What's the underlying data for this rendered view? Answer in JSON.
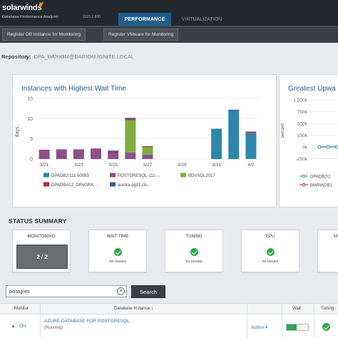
{
  "app": {
    "logo_text": "solarwinds",
    "product": "Database Performance Analyzer",
    "version": "2020.2.800",
    "tabs": [
      "PERFORMANCE",
      "VIRTUALIZATION"
    ]
  },
  "subnav": {
    "buttons": [
      "Register DB Instance for Monitoring",
      "Register VMware for Monitoring"
    ]
  },
  "repository": {
    "label": "Repository:",
    "value": "DPA_DARIOM@DARIOM.IGNITE.LOCAL"
  },
  "chart_data": [
    {
      "type": "bar",
      "title": "Instances with Highest Wait Time",
      "ylabel": "days",
      "ylim": [
        0,
        15
      ],
      "yticks": [
        0,
        5,
        10,
        15
      ],
      "grid": true,
      "legend_position": "bottom",
      "categories": [
        "3/21",
        "3/22",
        "3/23",
        "3/24",
        "3/25",
        "3/26",
        "3/27",
        "3/28",
        "3/29",
        "3/30",
        "3/31",
        "4/1",
        "4/2"
      ],
      "xtick_labels": [
        "3/21",
        "3/23",
        "3/25",
        "3/27",
        "3/29",
        "3/31",
        "4/2"
      ],
      "series": [
        {
          "name": "DPADB2\\111 50083",
          "color": "#2e86ab",
          "values": [
            0,
            0,
            0,
            0,
            0,
            0,
            0,
            0,
            0,
            0,
            7.5,
            12,
            6.5
          ]
        },
        {
          "name": "POSTGRESQL-111-...",
          "color": "#8d4f8f",
          "values": [
            2.2,
            2.3,
            2.3,
            2.4,
            1.5,
            1.6,
            1.1,
            0,
            0,
            0,
            0,
            0,
            0
          ]
        },
        {
          "name": "BDVSQL2017",
          "color": "#7fae3d",
          "values": [
            0,
            0,
            0,
            0,
            0,
            8,
            1.9,
            0,
            0,
            0,
            0,
            0,
            0
          ]
        },
        {
          "name": "DPADBA12_DPAGRA...",
          "color": "#b22d3a",
          "values": [
            0.1,
            0.1,
            0.1,
            0.2,
            0.3,
            0.3,
            0.2,
            0,
            0,
            0,
            0,
            0,
            0.3
          ]
        },
        {
          "name": "aurora-pg11.clu...",
          "color": "#3c56a5",
          "values": [
            0,
            0,
            0,
            0,
            0.3,
            0.3,
            0,
            0,
            0,
            0,
            0,
            0.2,
            0
          ]
        }
      ]
    },
    {
      "type": "line",
      "title": "Greatest Upwa",
      "ylabel": "percent",
      "yticks": [
        "1,000k",
        "750k",
        "500k",
        "250k",
        "0k",
        "-250k"
      ],
      "legend_position": "bottom",
      "series": [
        {
          "name": "DPADB2\\1",
          "color": "#2e86ab"
        },
        {
          "name": "MARIADB1",
          "color": "#b22d3a"
        }
      ]
    }
  ],
  "status_summary": {
    "title": "STATUS SUMMARY",
    "cards": [
      {
        "title": "MONITORING",
        "value": "2 / 2"
      },
      {
        "title": "WAIT TIME",
        "note": "no issues"
      },
      {
        "title": "TUNING",
        "note": "no issues"
      },
      {
        "title": "CPU",
        "note": "no issues"
      },
      {
        "title": "M"
      }
    ]
  },
  "search": {
    "value": "postgres",
    "clear_glyph": "✕",
    "button_label": "Search"
  },
  "table": {
    "headers": [
      "Monitor",
      "Database Instance ↓",
      "Wait",
      "Tuning"
    ],
    "rows": [
      {
        "monitor": "ON",
        "instance": "AZURE DATABASE FOR POSTGRESQL",
        "status": "(Running)",
        "action": "Action ▾"
      }
    ]
  }
}
